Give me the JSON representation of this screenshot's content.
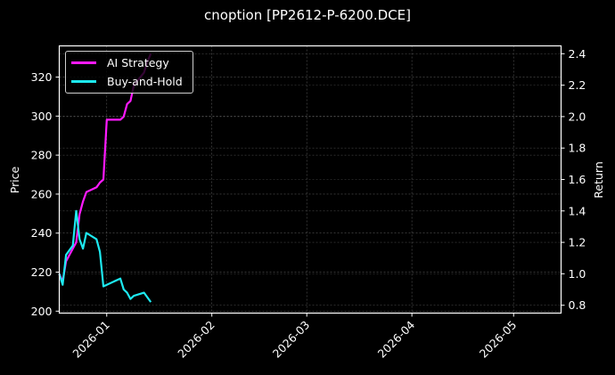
{
  "chart_data": {
    "type": "line",
    "title": "cnoption [PP2612-P-6200.DCE]",
    "xlabel": "",
    "ylabel_left": "Price",
    "ylabel_right": "Return",
    "x_ticks": [
      "2026-01",
      "2026-02",
      "2026-03",
      "2026-04",
      "2026-05"
    ],
    "y_left_ticks": [
      200,
      220,
      240,
      260,
      280,
      300,
      320
    ],
    "y_right_ticks": [
      0.8,
      1.0,
      1.2,
      1.4,
      1.6,
      1.8,
      2.0,
      2.2,
      2.4
    ],
    "y_left_range": [
      199,
      336
    ],
    "y_right_range": [
      0.75,
      2.45
    ],
    "x_range": [
      "2025-12-18",
      "2026-05-15"
    ],
    "grid": true,
    "legend_position": "upper left",
    "series": [
      {
        "name": "AI Strategy",
        "axis": "right",
        "color": "#ff1aff",
        "x": [
          "2025-12-18",
          "2025-12-19",
          "2025-12-20",
          "2025-12-22",
          "2025-12-23",
          "2025-12-24",
          "2025-12-25",
          "2025-12-26",
          "2025-12-29",
          "2025-12-30",
          "2025-12-31",
          "2026-01-01",
          "2026-01-02",
          "2026-01-05",
          "2026-01-06",
          "2026-01-07",
          "2026-01-08",
          "2026-01-09",
          "2026-01-12",
          "2026-01-13",
          "2026-01-14"
        ],
        "values": [
          1.0,
          0.95,
          1.08,
          1.16,
          1.2,
          1.38,
          1.46,
          1.52,
          1.55,
          1.58,
          1.6,
          1.98,
          1.98,
          1.98,
          2.0,
          2.08,
          2.1,
          2.2,
          2.28,
          2.35,
          2.4
        ]
      },
      {
        "name": "Buy-and-Hold",
        "axis": "right",
        "color": "#1de9f0",
        "x": [
          "2025-12-18",
          "2025-12-19",
          "2025-12-20",
          "2025-12-22",
          "2025-12-23",
          "2025-12-24",
          "2025-12-25",
          "2025-12-26",
          "2025-12-29",
          "2025-12-30",
          "2025-12-31",
          "2026-01-01",
          "2026-01-05",
          "2026-01-06",
          "2026-01-07",
          "2026-01-08",
          "2026-01-09",
          "2026-01-12",
          "2026-01-13",
          "2026-01-14"
        ],
        "values": [
          1.0,
          0.93,
          1.12,
          1.18,
          1.4,
          1.22,
          1.16,
          1.26,
          1.22,
          1.14,
          0.92,
          0.93,
          0.97,
          0.9,
          0.88,
          0.84,
          0.86,
          0.88,
          0.85,
          0.82
        ]
      }
    ]
  }
}
